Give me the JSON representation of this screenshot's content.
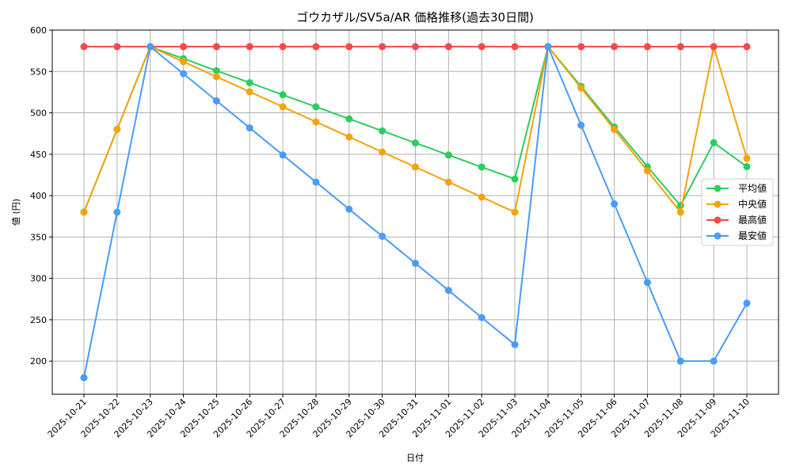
{
  "chart_data": {
    "type": "line",
    "title": "ゴウカザル/SV5a/AR 価格推移(過去30日間)",
    "xlabel": "日付",
    "ylabel": "値 (円)",
    "ylim": [
      160,
      600
    ],
    "yticks": [
      200,
      250,
      300,
      350,
      400,
      450,
      500,
      550,
      600
    ],
    "grid": true,
    "legend_position": "center right",
    "categories": [
      "2025-10-21",
      "2025-10-22",
      "2025-10-23",
      "2025-10-24",
      "2025-10-25",
      "2025-10-26",
      "2025-10-27",
      "2025-10-28",
      "2025-10-29",
      "2025-10-30",
      "2025-10-31",
      "2025-11-01",
      "2025-11-02",
      "2025-11-03",
      "2025-11-04",
      "2025-11-05",
      "2025-11-06",
      "2025-11-07",
      "2025-11-08",
      "2025-11-09",
      "2025-11-10"
    ],
    "series": [
      {
        "name": "平均値",
        "color": "#2ecc5f",
        "values": [
          380,
          480,
          580,
          565.5,
          550.9,
          536.4,
          521.8,
          507.3,
          492.7,
          478.2,
          463.6,
          449.1,
          434.5,
          420,
          580,
          532,
          483,
          435,
          388,
          464,
          435
        ]
      },
      {
        "name": "中央値",
        "color": "#f5a30a",
        "values": [
          380,
          480,
          580,
          561.8,
          543.6,
          525.5,
          507.3,
          489.1,
          470.9,
          452.7,
          434.5,
          416.4,
          398.2,
          380,
          580,
          530,
          480,
          430,
          380,
          580,
          445
        ]
      },
      {
        "name": "最高値",
        "color": "#f44a4a",
        "values": [
          580,
          580,
          580,
          580,
          580,
          580,
          580,
          580,
          580,
          580,
          580,
          580,
          580,
          580,
          580,
          580,
          580,
          580,
          580,
          580,
          580
        ]
      },
      {
        "name": "最安値",
        "color": "#4a9cf5",
        "values": [
          180,
          380,
          580,
          547.3,
          514.5,
          481.8,
          449.1,
          416.4,
          383.6,
          350.9,
          318.2,
          285.5,
          252.7,
          220,
          580,
          485,
          390,
          295,
          200,
          200,
          270
        ]
      }
    ]
  }
}
